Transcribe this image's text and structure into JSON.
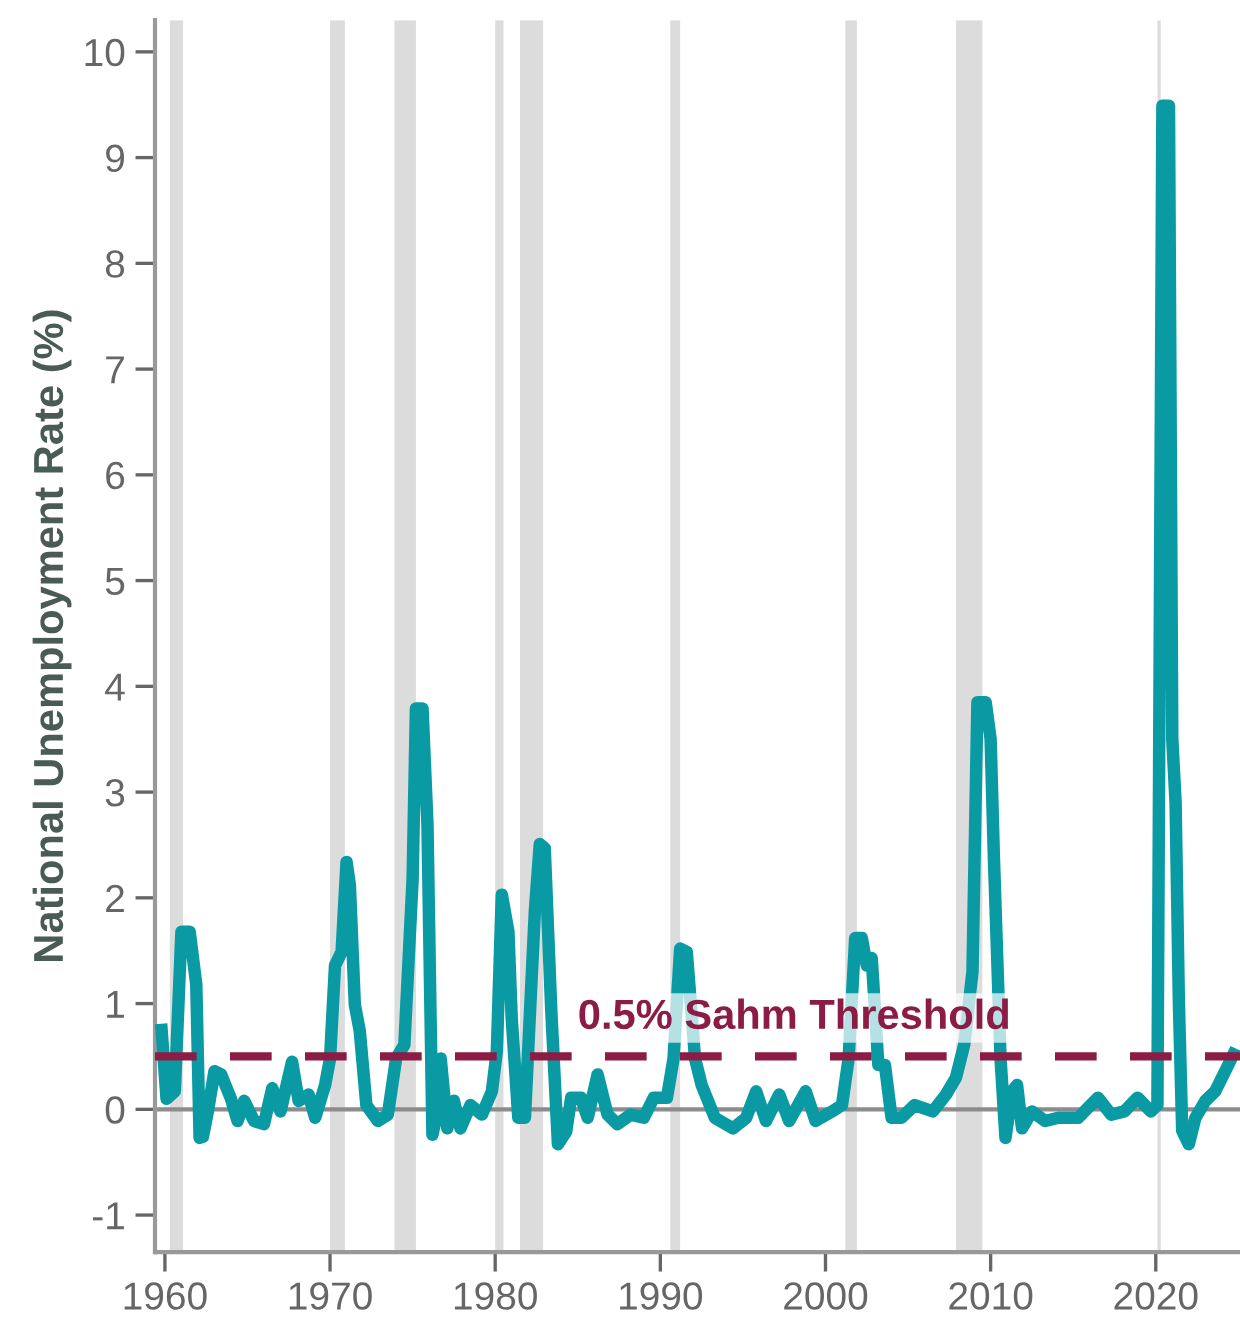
{
  "chart_data": {
    "type": "line",
    "ylabel": "National Unemployment Rate (%)",
    "xlim": [
      1959.4,
      2025.1
    ],
    "ylim": [
      -1.35,
      10.3
    ],
    "xticks": [
      1960,
      1970,
      1980,
      1990,
      2000,
      2010,
      2020
    ],
    "yticks": [
      -1,
      0,
      1,
      2,
      3,
      4,
      5,
      6,
      7,
      8,
      9,
      10
    ],
    "grid": false,
    "marker": "none",
    "line_style": "solid",
    "series": [
      {
        "color": "#0a9aa3",
        "x": [
          1959.8,
          1960.1,
          1960.6,
          1961.0,
          1961.5,
          1961.9,
          1962.1,
          1962.3,
          1962.6,
          1963.0,
          1963.4,
          1964.0,
          1964.4,
          1964.8,
          1965.4,
          1966.0,
          1966.5,
          1967.0,
          1967.7,
          1968.1,
          1968.7,
          1969.1,
          1969.7,
          1970.0,
          1970.3,
          1970.7,
          1971.0,
          1971.2,
          1971.5,
          1971.8,
          1972.2,
          1972.9,
          1973.5,
          1974.0,
          1974.5,
          1975.0,
          1975.2,
          1975.6,
          1975.9,
          1976.2,
          1976.5,
          1976.7,
          1977.1,
          1977.5,
          1977.9,
          1978.5,
          1979.2,
          1979.8,
          1980.1,
          1980.4,
          1980.8,
          1981.0,
          1981.4,
          1981.8,
          1982.4,
          1982.7,
          1983.0,
          1983.4,
          1983.8,
          1984.3,
          1984.6,
          1985.2,
          1985.6,
          1986.2,
          1986.8,
          1987.4,
          1988.2,
          1989.0,
          1989.6,
          1990.4,
          1990.8,
          1991.2,
          1991.6,
          1992.1,
          1992.5,
          1993.3,
          1994.4,
          1995.2,
          1995.8,
          1996.4,
          1997.2,
          1997.8,
          1998.8,
          1999.4,
          2000.4,
          2001.0,
          2001.4,
          2001.8,
          2002.2,
          2002.5,
          2002.8,
          2003.2,
          2003.6,
          2004.0,
          2004.6,
          2005.4,
          2006.5,
          2007.3,
          2007.9,
          2008.4,
          2008.9,
          2009.2,
          2009.7,
          2010.0,
          2010.2,
          2010.6,
          2010.9,
          2011.3,
          2011.6,
          2011.9,
          2012.5,
          2013.3,
          2014.1,
          2015.3,
          2016.5,
          2017.3,
          2018.1,
          2018.9,
          2019.7,
          2020.1,
          2020.4,
          2020.8,
          2021.0,
          2021.2,
          2021.4,
          2021.6,
          2022.0,
          2022.4,
          2023.0,
          2023.6,
          2024.2,
          2024.7
        ],
        "values": [
          0.75,
          0.1,
          0.17,
          1.68,
          1.68,
          1.18,
          -0.27,
          -0.26,
          -0.02,
          0.36,
          0.33,
          0.1,
          -0.11,
          0.08,
          -0.11,
          -0.14,
          0.2,
          -0.02,
          0.45,
          0.08,
          0.14,
          -0.08,
          0.23,
          0.48,
          1.36,
          1.49,
          2.34,
          2.12,
          0.99,
          0.74,
          0.04,
          -0.11,
          -0.05,
          0.48,
          0.61,
          2.18,
          3.79,
          3.79,
          2.69,
          -0.24,
          -0.02,
          0.48,
          -0.18,
          0.08,
          -0.18,
          0.04,
          -0.05,
          0.17,
          0.55,
          2.03,
          1.68,
          0.86,
          -0.08,
          -0.08,
          1.87,
          2.51,
          2.47,
          0.92,
          -0.33,
          -0.21,
          0.11,
          0.11,
          -0.08,
          0.33,
          -0.05,
          -0.14,
          -0.05,
          -0.08,
          0.11,
          0.11,
          0.48,
          1.52,
          1.49,
          0.48,
          0.23,
          -0.08,
          -0.18,
          -0.08,
          0.17,
          -0.11,
          0.14,
          -0.11,
          0.17,
          -0.11,
          -0.02,
          0.04,
          0.48,
          1.62,
          1.62,
          1.36,
          1.43,
          0.42,
          0.42,
          -0.08,
          -0.08,
          0.04,
          -0.02,
          0.14,
          0.3,
          0.61,
          1.3,
          3.85,
          3.85,
          3.5,
          2.37,
          0.48,
          -0.27,
          0.17,
          0.23,
          -0.18,
          -0.02,
          -0.11,
          -0.08,
          -0.08,
          0.11,
          -0.05,
          -0.02,
          0.11,
          -0.02,
          0.04,
          9.49,
          9.49,
          3.5,
          2.9,
          1.0,
          -0.2,
          -0.33,
          -0.08,
          0.08,
          0.17,
          0.36,
          0.52
        ]
      }
    ],
    "ref_lines": [
      {
        "axis": "y",
        "value": 0,
        "color": "#8c8c8c",
        "line_style": "solid"
      },
      {
        "axis": "y",
        "value": 0.5,
        "label": "0.5% Sahm Threshold",
        "color": "#8b1c45",
        "line_style": "dashed"
      }
    ],
    "bands": [
      {
        "axis": "x",
        "from": 1960.3,
        "to": 1961.1,
        "color": "#dcdcdc"
      },
      {
        "axis": "x",
        "from": 1970.0,
        "to": 1970.9,
        "color": "#dcdcdc"
      },
      {
        "axis": "x",
        "from": 1973.9,
        "to": 1975.2,
        "color": "#dcdcdc"
      },
      {
        "axis": "x",
        "from": 1980.0,
        "to": 1980.5,
        "color": "#dcdcdc"
      },
      {
        "axis": "x",
        "from": 1981.5,
        "to": 1982.9,
        "color": "#dcdcdc"
      },
      {
        "axis": "x",
        "from": 1990.6,
        "to": 1991.2,
        "color": "#dcdcdc"
      },
      {
        "axis": "x",
        "from": 2001.2,
        "to": 2001.9,
        "color": "#dcdcdc"
      },
      {
        "axis": "x",
        "from": 2007.9,
        "to": 2009.5,
        "color": "#dcdcdc"
      },
      {
        "axis": "x",
        "from": 2020.1,
        "to": 2020.3,
        "color": "#dcdcdc"
      }
    ]
  }
}
